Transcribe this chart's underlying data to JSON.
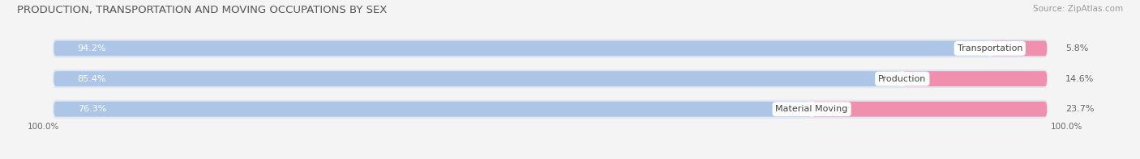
{
  "title": "PRODUCTION, TRANSPORTATION AND MOVING OCCUPATIONS BY SEX",
  "source": "Source: ZipAtlas.com",
  "categories": [
    "Transportation",
    "Production",
    "Material Moving"
  ],
  "male_values": [
    94.2,
    85.4,
    76.3
  ],
  "female_values": [
    5.8,
    14.6,
    23.7
  ],
  "male_color": "#adc6e8",
  "female_color": "#f090ae",
  "bar_bg_color": "#e2e8f0",
  "title_color": "#555555",
  "source_color": "#999999",
  "label_inside_color": "#ffffff",
  "label_outside_color": "#666666",
  "category_label_color": "#444444",
  "bg_color": "#f4f4f4",
  "title_fontsize": 9.5,
  "source_fontsize": 7.5,
  "bar_label_fontsize": 8,
  "category_fontsize": 8,
  "axis_label_fontsize": 7.5,
  "legend_fontsize": 8.5
}
